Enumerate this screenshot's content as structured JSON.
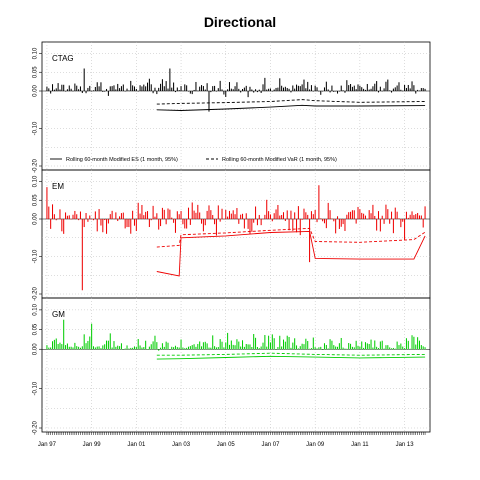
{
  "chart_data": {
    "type": "bar",
    "title": "Directional",
    "xlabel": "",
    "ylabel": "",
    "x_range": [
      "1997-01",
      "2013-12"
    ],
    "x_ticks": [
      "Jan 97",
      "Jan 99",
      "Jan 01",
      "Jan 03",
      "Jan 05",
      "Jan 07",
      "Jan 09",
      "Jan 11",
      "Jan 13"
    ],
    "grid": true,
    "legend": {
      "placement": "bottom of first panel",
      "entries": [
        {
          "label": "Rolling 60-month Modified ES (1 month, 95%)",
          "style": "solid"
        },
        {
          "label": "Rolling 60-month Modified VaR (1 month, 95%)",
          "style": "dashed"
        }
      ]
    },
    "panels": [
      {
        "name": "CTAG",
        "color": "#000000",
        "ylim": [
          -0.2,
          0.12
        ],
        "yticks": [
          "0.10",
          "0.05",
          "0.00",
          "-0.10",
          "-0.20"
        ],
        "returns_approx": {
          "start": "1997-01",
          "monthly_range": [
            -0.06,
            0.06
          ],
          "mean": 0.008
        },
        "var_series": [
          [
            "2001-12",
            -0.035
          ],
          [
            "2003-01",
            -0.033
          ],
          [
            "2005-01",
            -0.031
          ],
          [
            "2007-01",
            -0.028
          ],
          [
            "2008-06",
            -0.023
          ],
          [
            "2009-01",
            -0.026
          ],
          [
            "2011-01",
            -0.03
          ],
          [
            "2013-12",
            -0.028
          ]
        ],
        "es_series": [
          [
            "2001-12",
            -0.05
          ],
          [
            "2003-01",
            -0.052
          ],
          [
            "2005-01",
            -0.048
          ],
          [
            "2007-01",
            -0.043
          ],
          [
            "2008-06",
            -0.038
          ],
          [
            "2009-01",
            -0.04
          ],
          [
            "2011-01",
            -0.04
          ],
          [
            "2013-12",
            -0.039
          ]
        ]
      },
      {
        "name": "EM",
        "color": "#ee0000",
        "ylim": [
          -0.2,
          0.12
        ],
        "yticks": [
          "0.10",
          "0.05",
          "0.00",
          "-0.10",
          "-0.20"
        ],
        "returns_approx": {
          "start": "1997-01",
          "monthly_range": [
            -0.19,
            0.09
          ],
          "mean": 0.008
        },
        "var_series": [
          [
            "2001-12",
            -0.075
          ],
          [
            "2002-12",
            -0.07
          ],
          [
            "2003-01",
            -0.042
          ],
          [
            "2005-01",
            -0.037
          ],
          [
            "2007-01",
            -0.03
          ],
          [
            "2008-10",
            -0.025
          ],
          [
            "2009-01",
            -0.06
          ],
          [
            "2011-01",
            -0.062
          ],
          [
            "2013-06",
            -0.055
          ],
          [
            "2013-12",
            -0.035
          ]
        ],
        "es_series": [
          [
            "2001-12",
            -0.14
          ],
          [
            "2002-12",
            -0.152
          ],
          [
            "2003-01",
            -0.05
          ],
          [
            "2005-01",
            -0.045
          ],
          [
            "2007-01",
            -0.036
          ],
          [
            "2008-10",
            -0.033
          ],
          [
            "2009-01",
            -0.105
          ],
          [
            "2011-01",
            -0.107
          ],
          [
            "2013-06",
            -0.107
          ],
          [
            "2013-12",
            -0.045
          ]
        ]
      },
      {
        "name": "GM",
        "color": "#00cc00",
        "ylim": [
          -0.2,
          0.12
        ],
        "yticks": [
          "0.10",
          "0.05",
          "0.00",
          "-0.10",
          "-0.20"
        ],
        "returns_approx": {
          "start": "1997-01",
          "monthly_range": [
            -0.03,
            0.08
          ],
          "mean": 0.008
        },
        "var_series": [
          [
            "2001-12",
            -0.015
          ],
          [
            "2003-01",
            -0.015
          ],
          [
            "2005-01",
            -0.013
          ],
          [
            "2007-01",
            -0.01
          ],
          [
            "2009-01",
            -0.013
          ],
          [
            "2011-01",
            -0.015
          ],
          [
            "2013-12",
            -0.013
          ]
        ],
        "es_series": [
          [
            "2001-12",
            -0.025
          ],
          [
            "2003-01",
            -0.024
          ],
          [
            "2005-01",
            -0.021
          ],
          [
            "2007-01",
            -0.018
          ],
          [
            "2009-01",
            -0.02
          ],
          [
            "2011-01",
            -0.022
          ],
          [
            "2013-12",
            -0.02
          ]
        ]
      }
    ]
  }
}
